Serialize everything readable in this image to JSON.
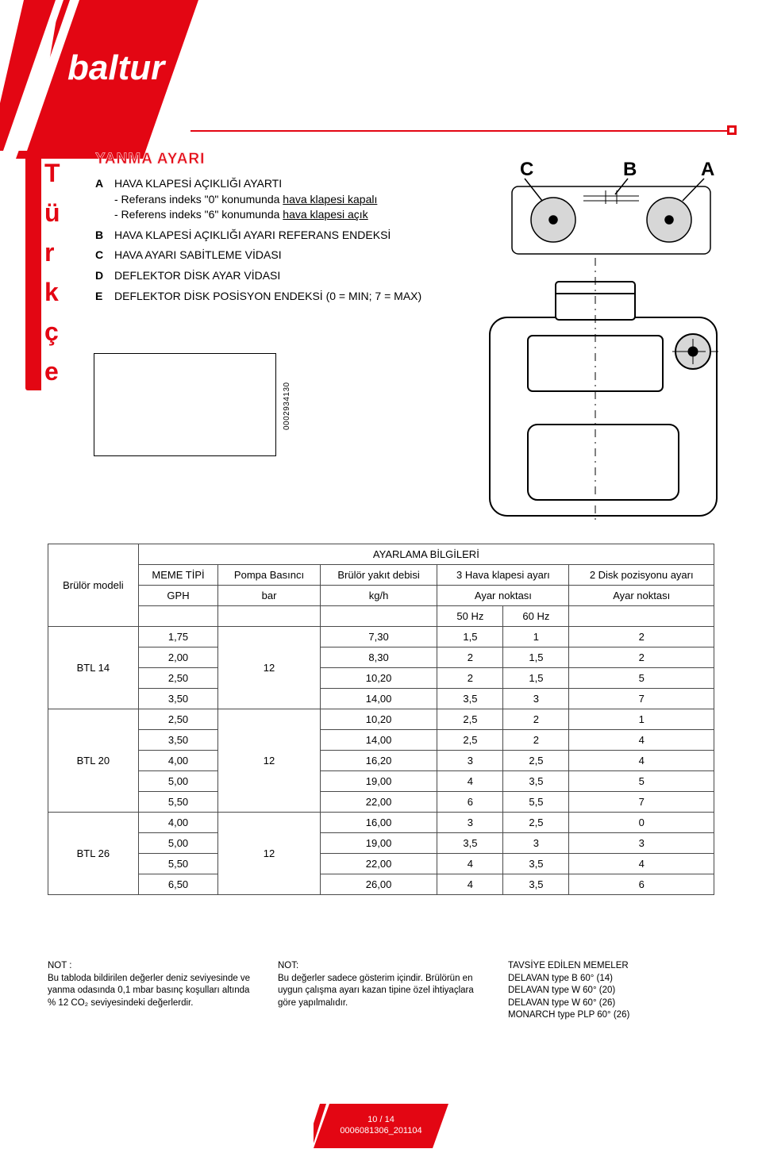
{
  "brand": "baltur",
  "side_tab_letters": [
    "T",
    "ü",
    "r",
    "k",
    "ç",
    "e"
  ],
  "section_title": "YANMA AYARI",
  "legend": {
    "A": {
      "title": "HAVA KLAPESİ AÇIKLIĞI AYARTI",
      "line1": "- Referans indeks \"0\" konumunda hava klapesi kapalı",
      "line2": "- Referens indeks \"6\" konumunda hava klapesi açık"
    },
    "B": "HAVA KLAPESİ AÇIKLIĞI AYARI REFERANS ENDEKSİ",
    "C": "HAVA AYARI SABİTLEME VİDASI",
    "D": "DEFLEKTOR DİSK AYAR VİDASI",
    "E": "DEFLEKTOR DİSK POSİSYON ENDEKSİ (0 = MIN; 7 = MAX)"
  },
  "vertical_code": "0002934130",
  "table": {
    "title": "AYARLAMA BİLGİLERİ",
    "headers": {
      "model": "Brülör modeli",
      "meme": "MEME TİPİ",
      "pompa": "Pompa Basıncı",
      "debi": "Brülör yakıt debisi",
      "hava": "3 Hava klapesi ayarı",
      "disk": "2 Disk pozisyonu ayarı",
      "gph": "GPH",
      "bar": "bar",
      "kgh": "kg/h",
      "ayar": "Ayar noktası",
      "ayar2": "Ayar noktası",
      "hz50": "50 Hz",
      "hz60": "60 Hz"
    },
    "groups": [
      {
        "model": "BTL 14",
        "bar": "12",
        "rows": [
          {
            "gph": "1,75",
            "kgh": "7,30",
            "h50": "1,5",
            "h60": "1",
            "disk": "2"
          },
          {
            "gph": "2,00",
            "kgh": "8,30",
            "h50": "2",
            "h60": "1,5",
            "disk": "2"
          },
          {
            "gph": "2,50",
            "kgh": "10,20",
            "h50": "2",
            "h60": "1,5",
            "disk": "5"
          },
          {
            "gph": "3,50",
            "kgh": "14,00",
            "h50": "3,5",
            "h60": "3",
            "disk": "7"
          }
        ]
      },
      {
        "model": "BTL 20",
        "bar": "12",
        "rows": [
          {
            "gph": "2,50",
            "kgh": "10,20",
            "h50": "2,5",
            "h60": "2",
            "disk": "1"
          },
          {
            "gph": "3,50",
            "kgh": "14,00",
            "h50": "2,5",
            "h60": "2",
            "disk": "4"
          },
          {
            "gph": "4,00",
            "kgh": "16,20",
            "h50": "3",
            "h60": "2,5",
            "disk": "4"
          },
          {
            "gph": "5,00",
            "kgh": "19,00",
            "h50": "4",
            "h60": "3,5",
            "disk": "5"
          },
          {
            "gph": "5,50",
            "kgh": "22,00",
            "h50": "6",
            "h60": "5,5",
            "disk": "7"
          }
        ]
      },
      {
        "model": "BTL 26",
        "bar": "12",
        "rows": [
          {
            "gph": "4,00",
            "kgh": "16,00",
            "h50": "3",
            "h60": "2,5",
            "disk": "0"
          },
          {
            "gph": "5,00",
            "kgh": "19,00",
            "h50": "3,5",
            "h60": "3",
            "disk": "3"
          },
          {
            "gph": "5,50",
            "kgh": "22,00",
            "h50": "4",
            "h60": "3,5",
            "disk": "4"
          },
          {
            "gph": "6,50",
            "kgh": "26,00",
            "h50": "4",
            "h60": "3,5",
            "disk": "6"
          }
        ]
      }
    ]
  },
  "notes": {
    "left": {
      "label": "NOT :",
      "text": "Bu tabloda bildirilen değerler deniz seviyesinde ve yanma odasında 0,1 mbar basınç koşulları altında % 12 CO₂ seviyesindeki değerlerdir."
    },
    "mid": {
      "label": "NOT:",
      "text": "Bu değerler sadece gösterim içindir. Brülörün en uygun çalışma ayarı kazan tipine özel ihtiyaçlara göre yapılmalıdır."
    },
    "right": {
      "label": "TAVSİYE EDİLEN MEMELER",
      "l1": "DELAVAN type B 60° (14)",
      "l2": "DELAVAN type W 60° (20)",
      "l3": "DELAVAN type W 60° (26)",
      "l4": "MONARCH type PLP 60° (26)"
    }
  },
  "footer": {
    "page": "10 / 14",
    "doc": "0006081306_201104"
  },
  "fig_labels": {
    "C": "C",
    "B": "B",
    "A": "A"
  },
  "colors": {
    "accent": "#e30613",
    "rule": "#4a4a4a"
  }
}
